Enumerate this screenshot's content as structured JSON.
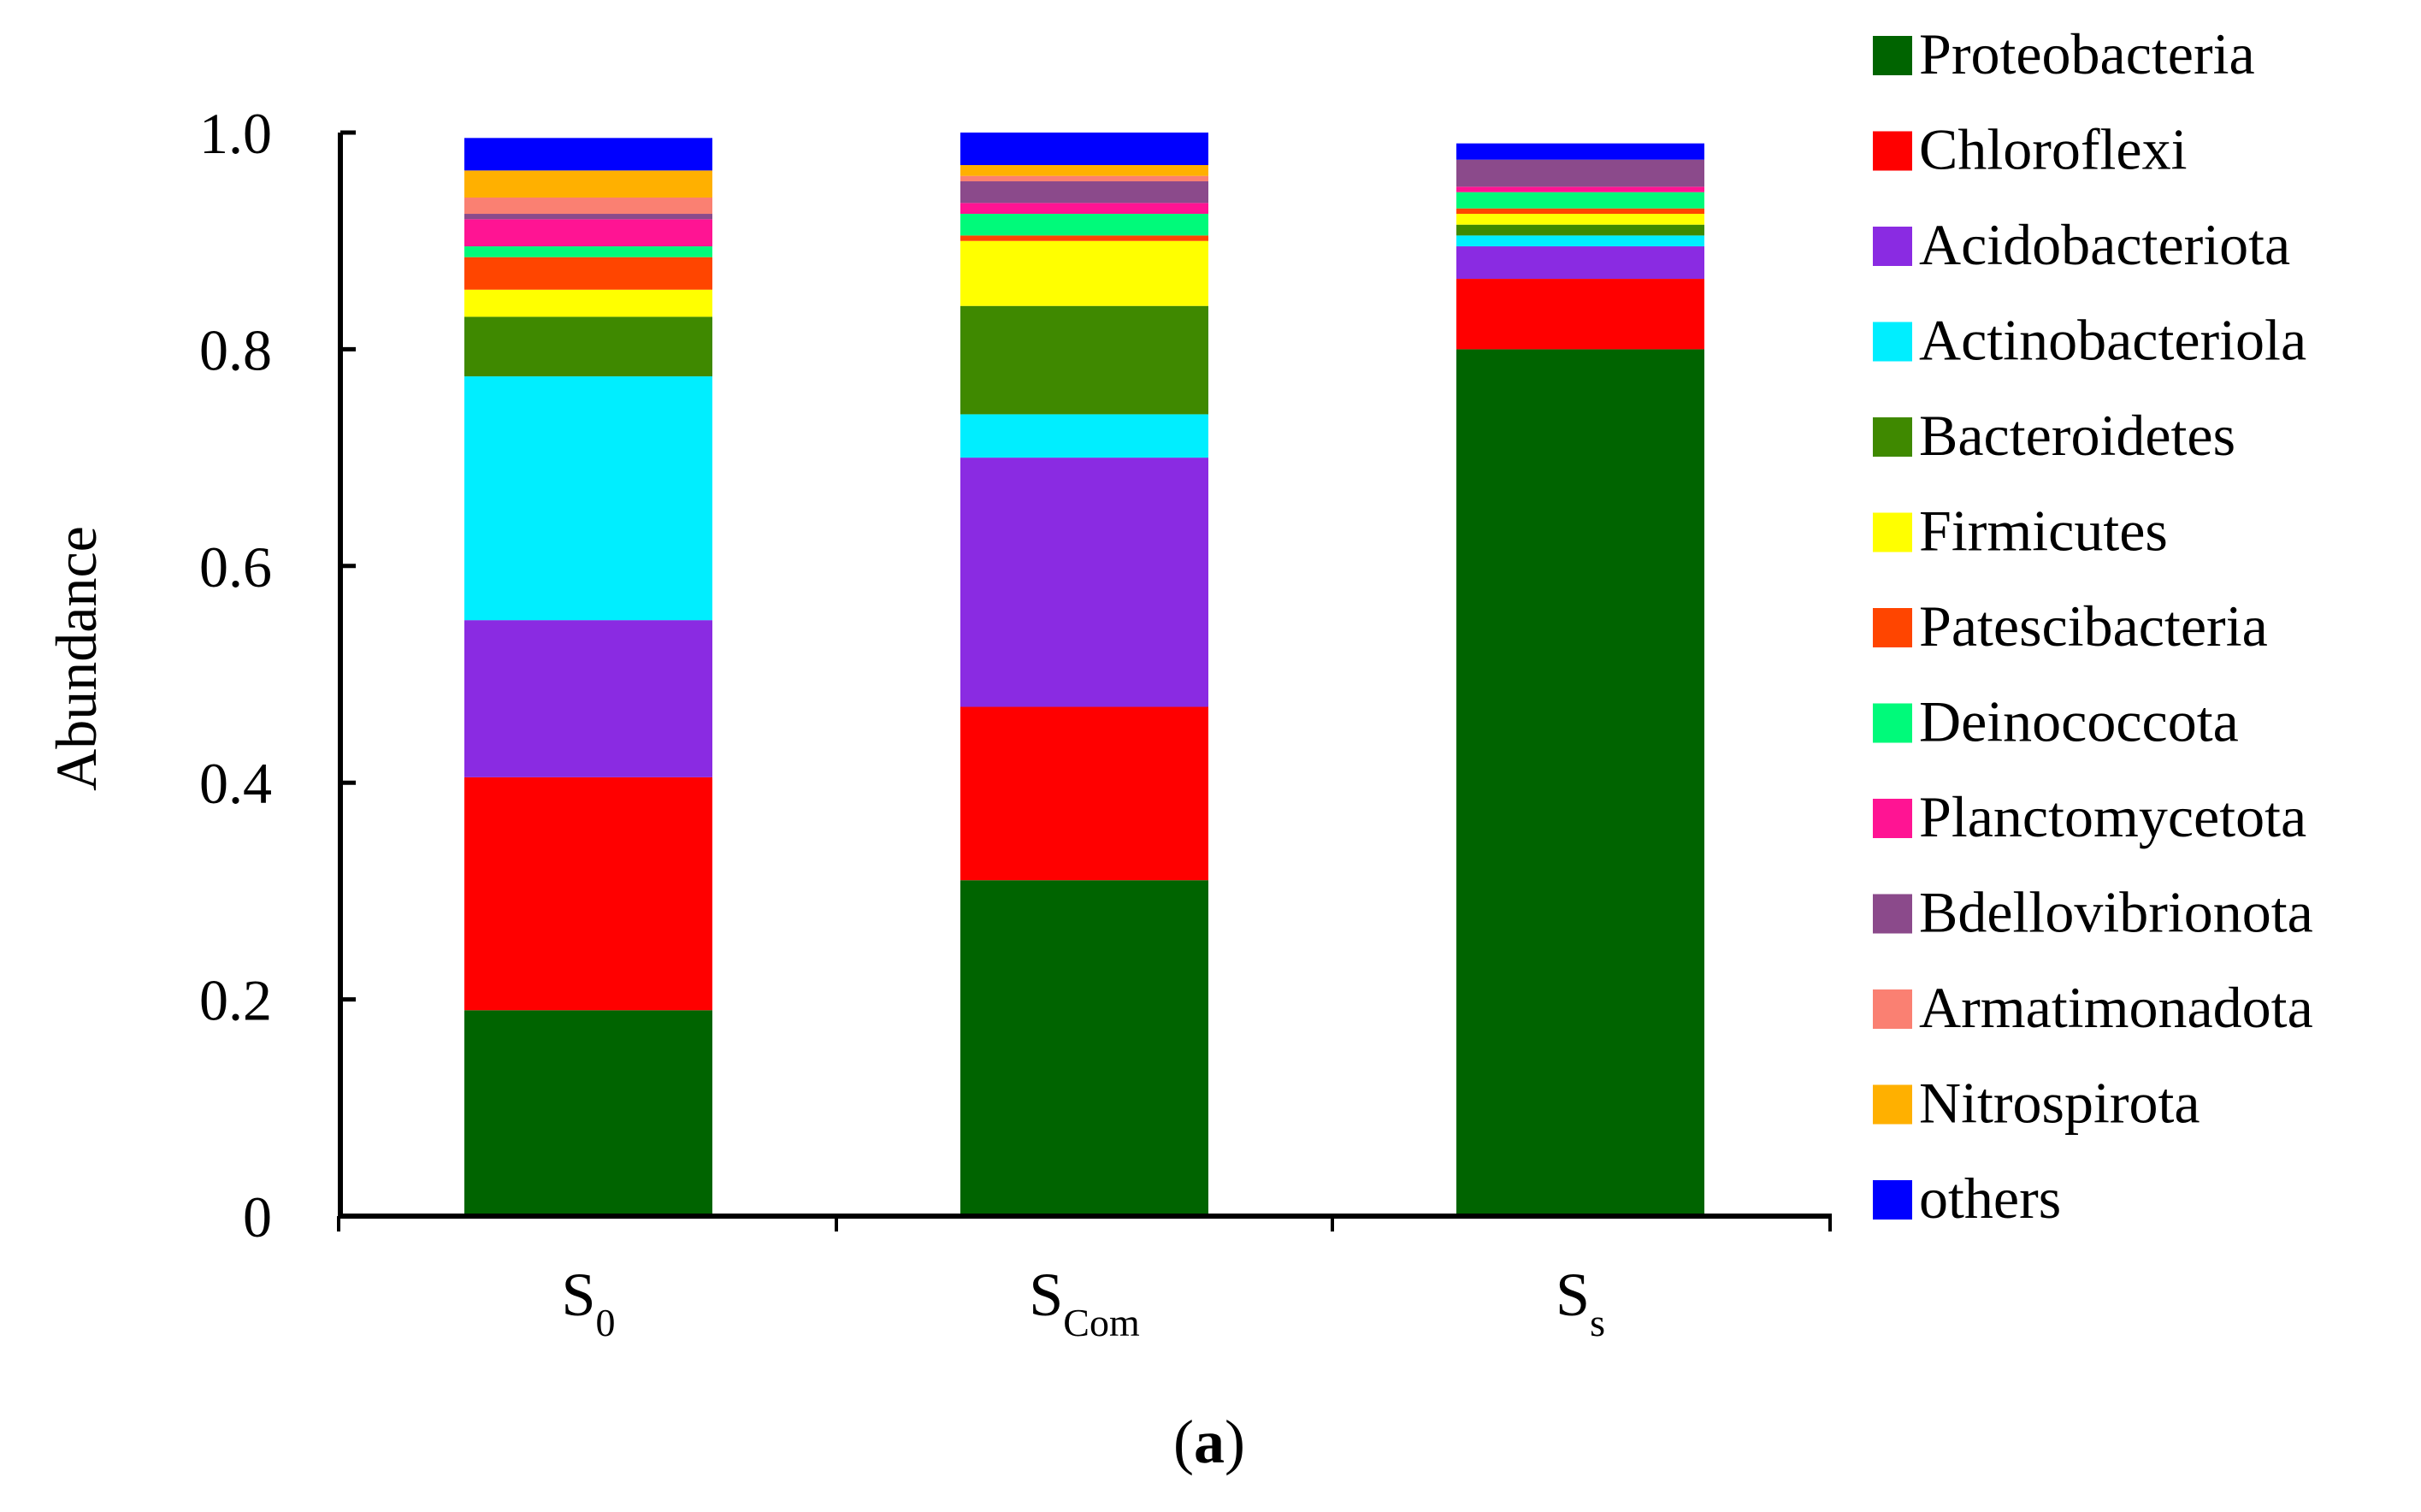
{
  "chart_data": {
    "type": "stacked_bar",
    "title": "",
    "xlabel": "",
    "ylabel": "Abundance",
    "ylim": [
      0,
      1.0
    ],
    "yticks": [
      {
        "value": 0,
        "label": "0"
      },
      {
        "value": 0.2,
        "label": "0.2"
      },
      {
        "value": 0.4,
        "label": "0.4"
      },
      {
        "value": 0.6,
        "label": "0.6"
      },
      {
        "value": 0.8,
        "label": "0.8"
      },
      {
        "value": 1.0,
        "label": "1.0"
      }
    ],
    "categories": [
      {
        "base": "S",
        "sub": "0"
      },
      {
        "base": "S",
        "sub": "Com"
      },
      {
        "base": "S",
        "sub": "s"
      }
    ],
    "legend_position": "right",
    "series": [
      {
        "name": "Proteobacteria",
        "color": "#006400",
        "values": [
          0.19,
          0.31,
          0.8
        ]
      },
      {
        "name": "Chloroflexi",
        "color": "#FF0000",
        "values": [
          0.215,
          0.16,
          0.065
        ]
      },
      {
        "name": "Acidobacteriota",
        "color": "#8A2BE2",
        "values": [
          0.145,
          0.23,
          0.03
        ]
      },
      {
        "name": "Actinobacteriola",
        "color": "#00EEFF",
        "values": [
          0.225,
          0.04,
          0.01
        ]
      },
      {
        "name": "Bacteroidetes",
        "color": "#3F8900",
        "values": [
          0.055,
          0.1,
          0.01
        ]
      },
      {
        "name": "Firmicutes",
        "color": "#FFFF00",
        "values": [
          0.025,
          0.06,
          0.01
        ]
      },
      {
        "name": "Patescibacteria",
        "color": "#FF4500",
        "values": [
          0.03,
          0.005,
          0.005
        ]
      },
      {
        "name": "Deinococcota",
        "color": "#00FA7A",
        "values": [
          0.01,
          0.02,
          0.015
        ]
      },
      {
        "name": "Planctomycetota",
        "color": "#FF1493",
        "values": [
          0.025,
          0.01,
          0.005
        ]
      },
      {
        "name": "Bdellovibrionota",
        "color": "#8B4A8B",
        "values": [
          0.005,
          0.02,
          0.025
        ]
      },
      {
        "name": "Armatimonadota",
        "color": "#FA8072",
        "values": [
          0.015,
          0.005,
          0.0
        ]
      },
      {
        "name": "Nitrospirota",
        "color": "#FFB000",
        "values": [
          0.025,
          0.01,
          0.0
        ]
      },
      {
        "name": "others",
        "color": "#0000FF",
        "values": [
          0.03,
          0.03,
          0.015
        ]
      }
    ],
    "caption": {
      "open": "(",
      "letter": "a",
      "close": ")"
    }
  }
}
